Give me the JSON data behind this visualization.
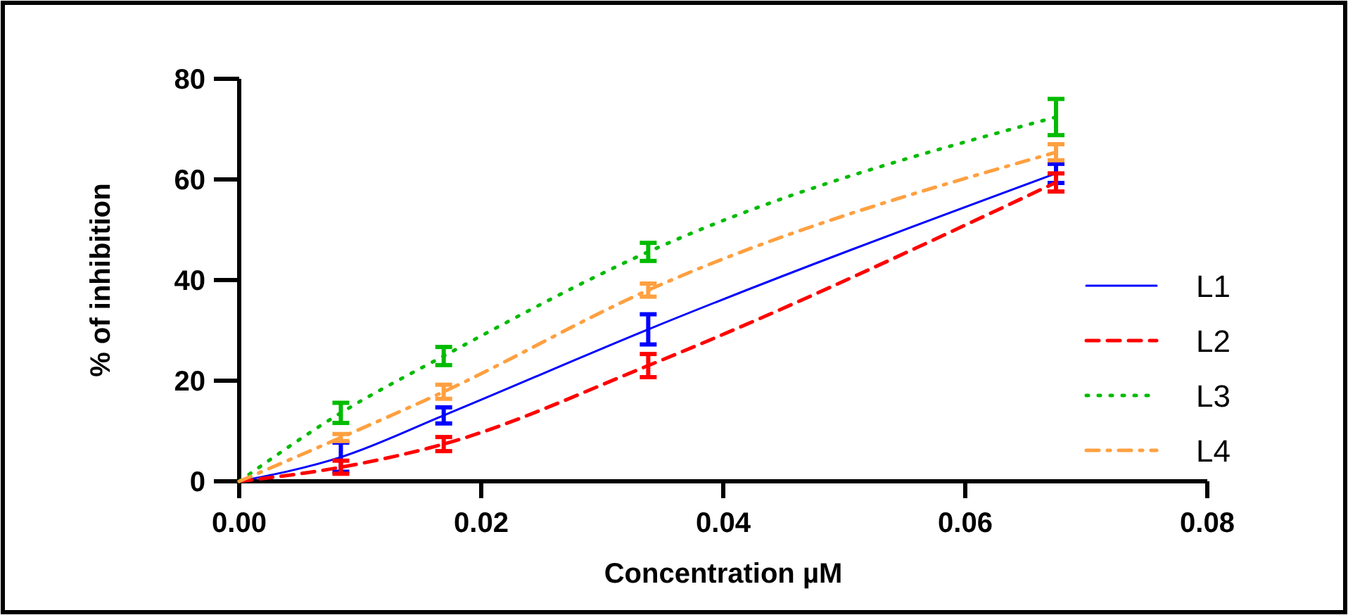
{
  "chart_data": {
    "type": "line",
    "xlabel": "Concentration µM",
    "ylabel": "% of inhibition",
    "x": [
      0,
      0.0084,
      0.0169,
      0.0338,
      0.0675
    ],
    "series": [
      {
        "name": "L1",
        "color": "#0000ff",
        "line_style": "solid",
        "values": [
          0,
          4.8,
          13.1,
          30.2,
          61.2
        ],
        "errors": [
          null,
          2.9,
          1.6,
          3.0,
          1.9
        ]
      },
      {
        "name": "L2",
        "color": "#ff0000",
        "line_style": "dashed",
        "values": [
          0,
          2.8,
          7.4,
          23.0,
          59.4
        ],
        "errors": [
          null,
          1.3,
          1.4,
          2.3,
          1.8
        ]
      },
      {
        "name": "L3",
        "color": "#00bb00",
        "line_style": "dotted",
        "values": [
          0,
          13.6,
          24.9,
          45.6,
          72.4
        ],
        "errors": [
          null,
          2.0,
          1.8,
          1.8,
          3.6
        ]
      },
      {
        "name": "L4",
        "color": "#ffa040",
        "line_style": "dashdot",
        "values": [
          0,
          8.7,
          17.8,
          38.0,
          65.4
        ],
        "errors": [
          null,
          0.7,
          1.4,
          1.3,
          1.6
        ]
      }
    ],
    "xlim": [
      0,
      0.08
    ],
    "xticks": [
      {
        "value": 0,
        "label": "0.00"
      },
      {
        "value": 0.02,
        "label": "0.02"
      },
      {
        "value": 0.04,
        "label": "0.04"
      },
      {
        "value": 0.06,
        "label": "0.06"
      },
      {
        "value": 0.08,
        "label": "0.08"
      }
    ],
    "ylim": [
      0,
      80
    ],
    "yticks": [
      0,
      20,
      40,
      60,
      80
    ],
    "grid": false,
    "legend": "bottom right",
    "marker": "none"
  }
}
